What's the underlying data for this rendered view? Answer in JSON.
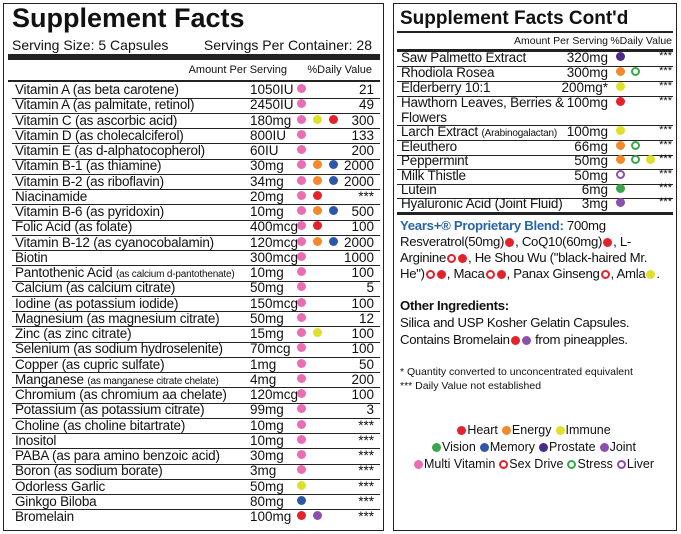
{
  "left": {
    "title": "Supplement Facts",
    "serving_size": "Serving Size: 5 Capsules",
    "servings": "Servings Per Container: 28",
    "header_amount": "Amount Per Serving",
    "header_dv": "%Daily Value",
    "rows": [
      {
        "name": "Vitamin A (as beta carotene)",
        "amount": "1050IU",
        "dv": "21"
      },
      {
        "name": "Vitamin A (as palmitate, retinol)",
        "amount": "2450IU",
        "dv": "49"
      },
      {
        "name": "Vitamin C (as ascorbic acid)",
        "amount": "180mg",
        "dv": "300"
      },
      {
        "name": "Vitamin D (as cholecalciferol)",
        "amount": "800IU",
        "dv": "133"
      },
      {
        "name": "Vitamin E (as d-alphatocopherol)",
        "amount": "60IU",
        "dv": "200"
      },
      {
        "name": "Vitamin B-1 (as thiamine)",
        "amount": "30mg",
        "dv": "2000"
      },
      {
        "name": "Vitamin B-2 (as riboflavin)",
        "amount": "34mg",
        "dv": "2000"
      },
      {
        "name": "Niacinamide",
        "amount": "20mg",
        "dv": "***"
      },
      {
        "name": "Vitamin B-6 (as pyridoxin)",
        "amount": "10mg",
        "dv": "500"
      },
      {
        "name": "Folic Acid (as folate)",
        "amount": "400mcg",
        "dv": "100"
      },
      {
        "name": "Vitamin B-12 (as cyanocobalamin)",
        "amount": "120mcg",
        "dv": "2000"
      },
      {
        "name": "Biotin",
        "amount": "300mcg",
        "dv": "1000"
      },
      {
        "name": "Pantothenic Acid",
        "note": "(as calcium d-pantothenate)",
        "amount": "10mg",
        "dv": "100"
      },
      {
        "name": "Calcium (as calcium citrate)",
        "amount": "50mg",
        "dv": "5"
      },
      {
        "name": "Iodine (as potassium iodide)",
        "amount": "150mcg",
        "dv": "100"
      },
      {
        "name": "Magnesium (as magnesium citrate)",
        "amount": "50mg",
        "dv": "12"
      },
      {
        "name": "Zinc (as zinc citrate)",
        "amount": "15mg",
        "dv": "100"
      },
      {
        "name": "Selenium (as sodium hydroselenite)",
        "amount": "70mcg",
        "dv": "100"
      },
      {
        "name": "Copper (as cupric sulfate)",
        "amount": "1mg",
        "dv": "50"
      },
      {
        "name": "Manganese",
        "note": "(as manganese citrate chelate)",
        "amount": "4mg",
        "dv": "200"
      },
      {
        "name": "Chromium (as chromium aa chelate)",
        "amount": "120mcg",
        "dv": "100"
      },
      {
        "name": "Potassium (as potassium citrate)",
        "amount": "99mg",
        "dv": "3"
      },
      {
        "name": "Choline (as choline bitartrate)",
        "amount": "10mg",
        "dv": "***"
      },
      {
        "name": "Inositol",
        "amount": "10mg",
        "dv": "***"
      },
      {
        "name": "PABA (as para amino benzoic acid)",
        "amount": "30mg",
        "dv": "***"
      },
      {
        "name": "Boron (as sodium borate)",
        "amount": "3mg",
        "dv": "***"
      },
      {
        "name": "Odorless Garlic",
        "amount": "50mg",
        "dv": "***"
      },
      {
        "name": "Ginkgo Biloba",
        "amount": "80mg",
        "dv": "***"
      },
      {
        "name": "Bromelain",
        "amount": "100mg",
        "dv": "***"
      }
    ]
  },
  "right": {
    "title": "Supplement Facts Cont'd",
    "header_amount": "Amount Per Serving",
    "header_dv": "%Daily Value",
    "rows": [
      {
        "name": "Saw Palmetto Extract",
        "amount": "320mg",
        "dv": "***"
      },
      {
        "name": "Rhodiola Rosea",
        "amount": "300mg",
        "dv": "***"
      },
      {
        "name": "Elderberry 10:1",
        "amount": "200mg*",
        "dv": "***"
      },
      {
        "name": "Hawthorn Leaves, Berries & Flowers",
        "amount": "100mg",
        "dv": "***"
      },
      {
        "name": "Larch Extract",
        "note": "(Arabinogalactan)",
        "amount": "100mg",
        "dv": "***"
      },
      {
        "name": "Eleuthero",
        "amount": "66mg",
        "dv": "***"
      },
      {
        "name": "Peppermint",
        "amount": "50mg",
        "dv": "***"
      },
      {
        "name": "Milk Thistle",
        "amount": "50mg",
        "dv": "***"
      },
      {
        "name": "Lutein",
        "amount": "6mg",
        "dv": "***"
      },
      {
        "name": "Hyaluronic Acid (Joint Fluid)",
        "amount": "3mg",
        "dv": "***"
      }
    ],
    "blend": {
      "title": "Years+® Proprietary Blend:",
      "amount": "700mg",
      "items": [
        "Resveratrol(50mg)",
        ", CoQ10(60mg)",
        ", L-Arginine",
        ", He Shou Wu (\"black-haired Mr. He\")",
        ", Maca",
        ", Panax Ginseng",
        ", Amla",
        "."
      ]
    },
    "other": {
      "heading": "Other Ingredients:",
      "text": "Silica and USP Kosher Gelatin Capsules. Contains Bromelain",
      "text_end": "from pineapples."
    },
    "footnotes": [
      "* Quantity converted to unconcentrated equivalent",
      "*** Daily Value not established"
    ],
    "legend": [
      "Heart",
      "Energy",
      "Immune",
      "Vision",
      "Memory",
      "Prostate",
      "Joint",
      "Multi Vitamin",
      "Sex Drive",
      "Stress",
      "Liver"
    ]
  }
}
